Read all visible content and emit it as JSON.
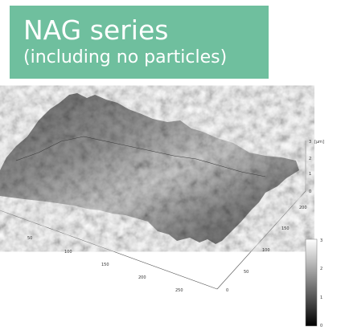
{
  "title": {
    "main": "NAG series",
    "subtitle": "(including no particles)"
  },
  "colors": {
    "title_bg": "#6fbf9e",
    "title_text": "#ffffff"
  },
  "plot": {
    "x_ticks": [
      "50",
      "100",
      "150",
      "200",
      "250"
    ],
    "y_ticks": [
      "0",
      "50",
      "100",
      "150",
      "200"
    ],
    "z_ticks": [
      "0",
      "1",
      "2",
      "3"
    ],
    "z_unit": "[μm]",
    "colorbar_ticks": [
      "0",
      "1",
      "2",
      "3"
    ]
  }
}
